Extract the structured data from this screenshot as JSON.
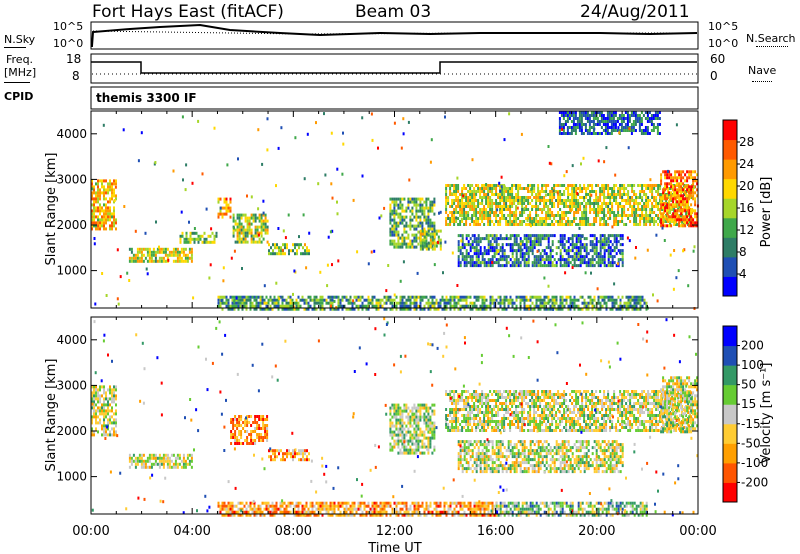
{
  "header": {
    "station": "Fort Hays East (fitACF)",
    "beam": "Beam 03",
    "date": "24/Aug/2011"
  },
  "top_panels": {
    "nsky_label": "N.Sky",
    "nsearch_label": "N.Search",
    "freq_label_1": "Freq.",
    "freq_label_2": "[MHz]",
    "nave_label": "Nave",
    "cpid_label": "CPID",
    "cpid_value": "themis 3300 IF",
    "noise_ticks": [
      "10^5",
      "10^0"
    ],
    "noise_right_ticks": [
      "10^5",
      "10^0"
    ],
    "freq_ticks": [
      "18",
      "8"
    ],
    "nave_ticks": [
      "60",
      "0"
    ]
  },
  "chart_data": [
    {
      "type": "heatmap",
      "title": "",
      "xlabel": "",
      "ylabel": "Slant Range [km]",
      "xlim": [
        "00:00",
        "24:00"
      ],
      "ylim": [
        180,
        4500
      ],
      "yticks": [
        "4000",
        "3000",
        "2000",
        "1000"
      ],
      "colorbar": {
        "label": "Power [dB]",
        "ticks": [
          "28",
          "24",
          "20",
          "16",
          "12",
          "8",
          "4"
        ],
        "colors": [
          "#0000ff",
          "#1f4fb4",
          "#2e7d66",
          "#3fa84a",
          "#a6d62a",
          "#ffd800",
          "#ff9a00",
          "#ff5a00",
          "#ff0000"
        ]
      },
      "regions": [
        {
          "t": [
            0.0,
            1.0
          ],
          "r": [
            1900,
            3000
          ],
          "level": 0.65
        },
        {
          "t": [
            1.5,
            4.0
          ],
          "r": [
            1200,
            1500
          ],
          "level": 0.55
        },
        {
          "t": [
            3.5,
            5.0
          ],
          "r": [
            1650,
            1850
          ],
          "level": 0.45
        },
        {
          "t": [
            5.0,
            5.5
          ],
          "r": [
            2200,
            2600
          ],
          "level": 0.7
        },
        {
          "t": [
            5.6,
            7.0
          ],
          "r": [
            1600,
            2250
          ],
          "level": 0.5
        },
        {
          "t": [
            7.0,
            8.6
          ],
          "r": [
            1400,
            1600
          ],
          "level": 0.45
        },
        {
          "t": [
            11.8,
            13.6
          ],
          "r": [
            1500,
            2600
          ],
          "level": 0.4
        },
        {
          "t": [
            13.0,
            13.8
          ],
          "r": [
            1500,
            1900
          ],
          "level": 0.5
        },
        {
          "t": [
            14.0,
            23.8
          ],
          "r": [
            2000,
            2900
          ],
          "level": 0.55
        },
        {
          "t": [
            14.5,
            21.0
          ],
          "r": [
            1100,
            1800
          ],
          "level": 0.25
        },
        {
          "t": [
            22.5,
            24.0
          ],
          "r": [
            2000,
            3200
          ],
          "level": 0.8
        },
        {
          "t": [
            18.5,
            22.5
          ],
          "r": [
            4000,
            4500
          ],
          "level": 0.2
        },
        {
          "t": [
            5.0,
            22.0
          ],
          "r": [
            180,
            450
          ],
          "level": 0.35
        }
      ]
    },
    {
      "type": "heatmap",
      "title": "",
      "xlabel": "Time UT",
      "ylabel": "Slant Range [km]",
      "xlim": [
        "00:00",
        "24:00"
      ],
      "ylim": [
        180,
        4500
      ],
      "xticks": [
        "00:00",
        "04:00",
        "08:00",
        "12:00",
        "16:00",
        "20:00",
        "00:00"
      ],
      "yticks": [
        "4000",
        "3000",
        "2000",
        "1000"
      ],
      "colorbar": {
        "label": "Velocity [m s⁻¹]",
        "ticks": [
          "200",
          "100",
          "50",
          "15",
          "-15",
          "-50",
          "-100",
          "-200"
        ],
        "colors": [
          "#ff0000",
          "#ff5500",
          "#ff9f00",
          "#ffcc33",
          "#c8c8c8",
          "#66cc33",
          "#339966",
          "#1f4fb4",
          "#0000ff"
        ]
      },
      "regions": [
        {
          "t": [
            0.0,
            1.0
          ],
          "r": [
            1900,
            3000
          ],
          "level": 0.5
        },
        {
          "t": [
            1.5,
            4.0
          ],
          "r": [
            1200,
            1500
          ],
          "level": 0.5
        },
        {
          "t": [
            5.5,
            7.0
          ],
          "r": [
            1700,
            2350
          ],
          "level": 0.25
        },
        {
          "t": [
            7.0,
            8.6
          ],
          "r": [
            1400,
            1600
          ],
          "level": 0.3
        },
        {
          "t": [
            11.8,
            13.6
          ],
          "r": [
            1500,
            2600
          ],
          "level": 0.55
        },
        {
          "t": [
            14.0,
            23.8
          ],
          "r": [
            2000,
            2900
          ],
          "level": 0.5
        },
        {
          "t": [
            14.5,
            21.0
          ],
          "r": [
            1100,
            1800
          ],
          "level": 0.5
        },
        {
          "t": [
            22.5,
            24.0
          ],
          "r": [
            2000,
            3200
          ],
          "level": 0.5
        },
        {
          "t": [
            5.0,
            16.0
          ],
          "r": [
            180,
            450
          ],
          "level": 0.3
        },
        {
          "t": [
            16.0,
            22.0
          ],
          "r": [
            180,
            450
          ],
          "level": 0.6
        }
      ]
    }
  ]
}
